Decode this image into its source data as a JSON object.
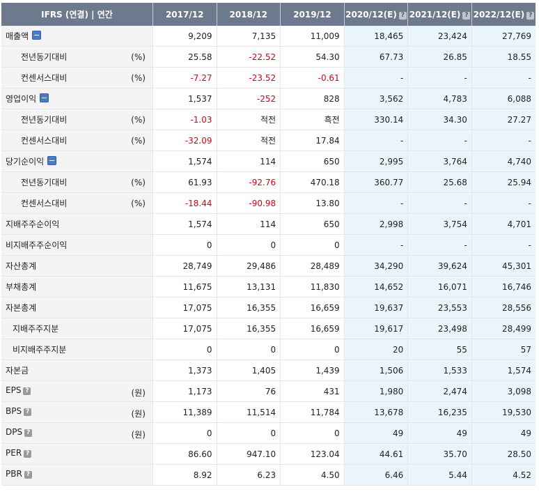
{
  "header": {
    "label": "IFRS (연결) | 연간",
    "columns": [
      {
        "label": "2017/12",
        "estimate": false
      },
      {
        "label": "2018/12",
        "estimate": false
      },
      {
        "label": "2019/12",
        "estimate": false
      },
      {
        "label": "2020/12(E)",
        "estimate": true
      },
      {
        "label": "2021/12(E)",
        "estimate": true
      },
      {
        "label": "2022/12(E)",
        "estimate": true
      }
    ]
  },
  "rows": [
    {
      "label": "매출액",
      "indent": 0,
      "toggle": true,
      "unit": "",
      "values": [
        "9,209",
        "7,135",
        "11,009",
        "18,465",
        "23,424",
        "27,769"
      ]
    },
    {
      "label": "전년동기대비",
      "indent": 1,
      "unit": "(%)",
      "values": [
        "25.58",
        "-22.52",
        "54.30",
        "67.73",
        "26.85",
        "18.55"
      ]
    },
    {
      "label": "컨센서스대비",
      "indent": 1,
      "unit": "(%)",
      "values": [
        "-7.27",
        "-23.52",
        "-0.61",
        "-",
        "-",
        "-"
      ]
    },
    {
      "label": "영업이익",
      "indent": 0,
      "toggle": true,
      "unit": "",
      "values": [
        "1,537",
        "-252",
        "828",
        "3,562",
        "4,783",
        "6,088"
      ]
    },
    {
      "label": "전년동기대비",
      "indent": 1,
      "unit": "(%)",
      "values": [
        "-1.03",
        "적전",
        "흑전",
        "330.14",
        "34.30",
        "27.27"
      ]
    },
    {
      "label": "컨센서스대비",
      "indent": 1,
      "unit": "(%)",
      "values": [
        "-32.09",
        "적전",
        "17.84",
        "-",
        "-",
        "-"
      ]
    },
    {
      "label": "당기순이익",
      "indent": 0,
      "toggle": true,
      "unit": "",
      "values": [
        "1,574",
        "114",
        "650",
        "2,995",
        "3,764",
        "4,740"
      ]
    },
    {
      "label": "전년동기대비",
      "indent": 1,
      "unit": "(%)",
      "values": [
        "61.93",
        "-92.76",
        "470.18",
        "360.77",
        "25.68",
        "25.94"
      ]
    },
    {
      "label": "컨센서스대비",
      "indent": 1,
      "unit": "(%)",
      "values": [
        "-18.44",
        "-90.98",
        "13.80",
        "-",
        "-",
        "-"
      ]
    },
    {
      "label": "지배주주순이익",
      "indent": 0,
      "unit": "",
      "values": [
        "1,574",
        "114",
        "650",
        "2,998",
        "3,754",
        "4,701"
      ]
    },
    {
      "label": "비지배주주순이익",
      "indent": 0,
      "unit": "",
      "values": [
        "0",
        "0",
        "0",
        "-",
        "-",
        "-"
      ]
    },
    {
      "label": "자산총계",
      "indent": 0,
      "unit": "",
      "values": [
        "28,749",
        "29,486",
        "28,489",
        "34,290",
        "39,624",
        "45,301"
      ]
    },
    {
      "label": "부채총계",
      "indent": 0,
      "unit": "",
      "values": [
        "11,675",
        "13,131",
        "11,830",
        "14,652",
        "16,071",
        "16,746"
      ]
    },
    {
      "label": "자본총계",
      "indent": 0,
      "unit": "",
      "values": [
        "17,075",
        "16,355",
        "16,659",
        "19,637",
        "23,553",
        "28,556"
      ]
    },
    {
      "label": "지배주주지분",
      "indent": 2,
      "unit": "",
      "values": [
        "17,075",
        "16,355",
        "16,659",
        "19,617",
        "23,498",
        "28,499"
      ]
    },
    {
      "label": "비지배주주지분",
      "indent": 2,
      "unit": "",
      "values": [
        "0",
        "0",
        "0",
        "20",
        "55",
        "57"
      ]
    },
    {
      "label": "자본금",
      "indent": 0,
      "unit": "",
      "values": [
        "1,373",
        "1,405",
        "1,439",
        "1,506",
        "1,533",
        "1,574"
      ]
    },
    {
      "label": "EPS",
      "indent": 0,
      "help": true,
      "unit": "(원)",
      "values": [
        "1,173",
        "76",
        "431",
        "1,980",
        "2,474",
        "3,098"
      ]
    },
    {
      "label": "BPS",
      "indent": 0,
      "help": true,
      "unit": "(원)",
      "values": [
        "11,389",
        "11,514",
        "11,784",
        "13,678",
        "16,235",
        "19,530"
      ]
    },
    {
      "label": "DPS",
      "indent": 0,
      "help": true,
      "unit": "(원)",
      "values": [
        "0",
        "0",
        "0",
        "49",
        "49",
        "49"
      ]
    },
    {
      "label": "PER",
      "indent": 0,
      "help": true,
      "unit": "",
      "values": [
        "86.60",
        "947.10",
        "123.04",
        "44.61",
        "35.70",
        "28.50"
      ]
    },
    {
      "label": "PBR",
      "indent": 0,
      "help": true,
      "unit": "",
      "values": [
        "8.92",
        "6.23",
        "4.50",
        "6.46",
        "5.44",
        "4.52"
      ]
    }
  ],
  "icons": {
    "toggle": "minus-icon",
    "help": "help-icon",
    "help_glyph": "?"
  },
  "colors": {
    "negative": "#d0021b",
    "header_bg": "#6d7a8e",
    "estimate_bg": "#e9f5fb",
    "label_bg": "#f4f4f5"
  }
}
